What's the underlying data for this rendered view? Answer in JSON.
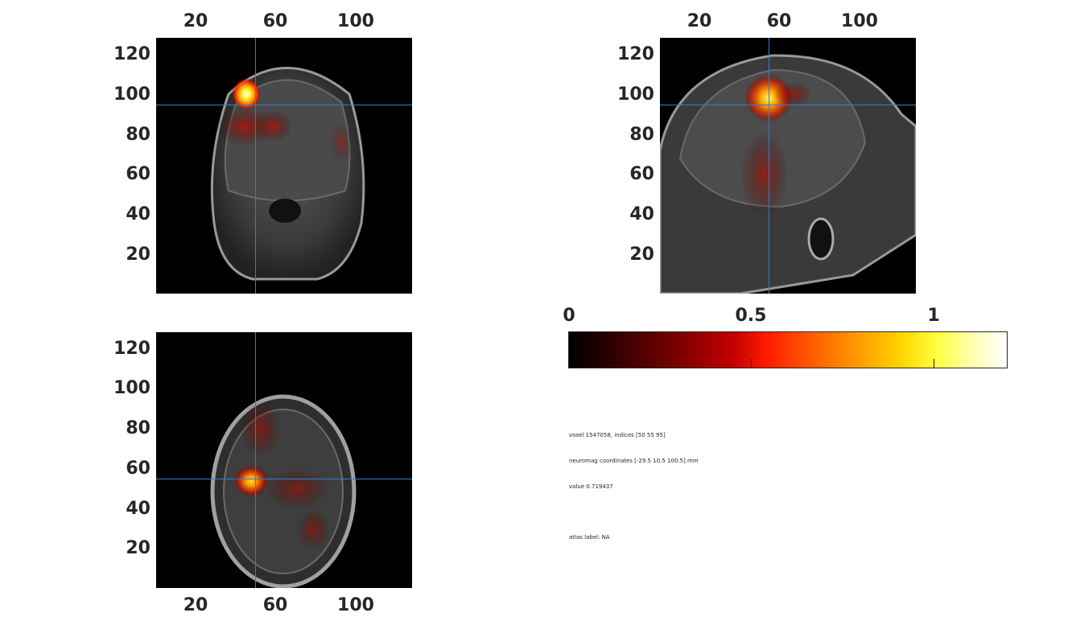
{
  "panels": {
    "coronal": {
      "yticks": [
        "120",
        "100",
        "80",
        "60",
        "40",
        "20"
      ],
      "xticks": [
        "20",
        "60",
        "100"
      ]
    },
    "sagittal": {
      "yticks": [
        "120",
        "100",
        "80",
        "60",
        "40",
        "20"
      ],
      "xticks": [
        "20",
        "60",
        "100"
      ]
    },
    "axial": {
      "yticks": [
        "120",
        "100",
        "80",
        "60",
        "40",
        "20"
      ],
      "xticks": [
        "20",
        "60",
        "100"
      ]
    }
  },
  "colorbar": {
    "ticks": [
      "0",
      "0.5",
      "1"
    ],
    "colormap": "hot"
  },
  "info": {
    "voxel": "voxel 1547058, indices [50 55 95]",
    "coordinates": "neuromag coordinates [-29.5 10.5 100.5] mm",
    "value": "value 0.719437",
    "atlas": "atlas label: NA"
  },
  "colors": {
    "crosshair": "#2f7fd1",
    "text": "#262626",
    "background": "#ffffff"
  }
}
